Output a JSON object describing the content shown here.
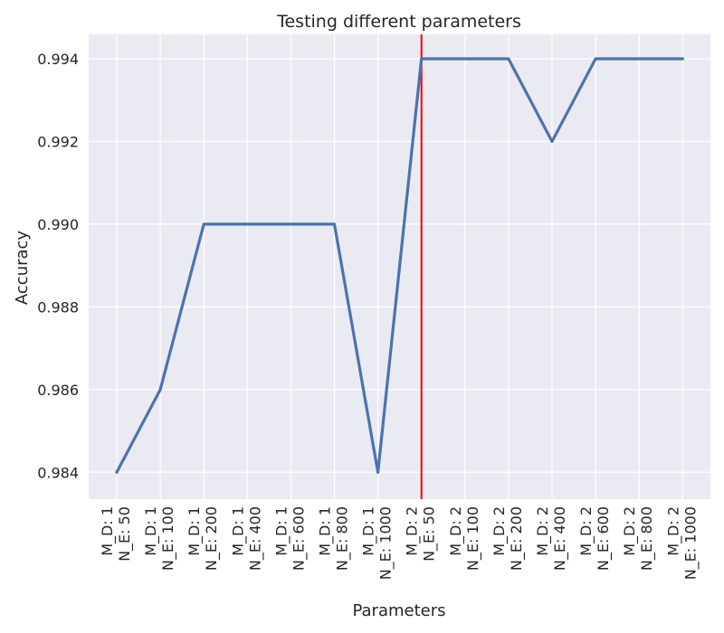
{
  "chart_data": {
    "type": "line",
    "title": "Testing different parameters",
    "xlabel": "Parameters",
    "ylabel": "Accuracy",
    "categories": [
      [
        "M_D: 1",
        "N_E: 50"
      ],
      [
        "M_D: 1",
        "N_E: 100"
      ],
      [
        "M_D: 1",
        "N_E: 200"
      ],
      [
        "M_D: 1",
        "N_E: 400"
      ],
      [
        "M_D: 1",
        "N_E: 600"
      ],
      [
        "M_D: 1",
        "N_E: 800"
      ],
      [
        "M_D: 1",
        "N_E: 1000"
      ],
      [
        "M_D: 2",
        "N_E: 50"
      ],
      [
        "M_D: 2",
        "N_E: 100"
      ],
      [
        "M_D: 2",
        "N_E: 200"
      ],
      [
        "M_D: 2",
        "N_E: 400"
      ],
      [
        "M_D: 2",
        "N_E: 600"
      ],
      [
        "M_D: 2",
        "N_E: 800"
      ],
      [
        "M_D: 2",
        "N_E: 1000"
      ]
    ],
    "series": [
      {
        "values": [
          0.984,
          0.986,
          0.99,
          0.99,
          0.99,
          0.99,
          0.984,
          0.994,
          0.994,
          0.994,
          0.992,
          0.994,
          0.994,
          0.994
        ],
        "color": "#4C72B0"
      }
    ],
    "yticks": [
      "0.984",
      "0.986",
      "0.988",
      "0.990",
      "0.992",
      "0.994"
    ],
    "ylim": [
      0.98335,
      0.99459
    ],
    "vline_category_index": 7,
    "vline_color": "#ff0000",
    "grid": true,
    "background": "#EAEAF2"
  }
}
